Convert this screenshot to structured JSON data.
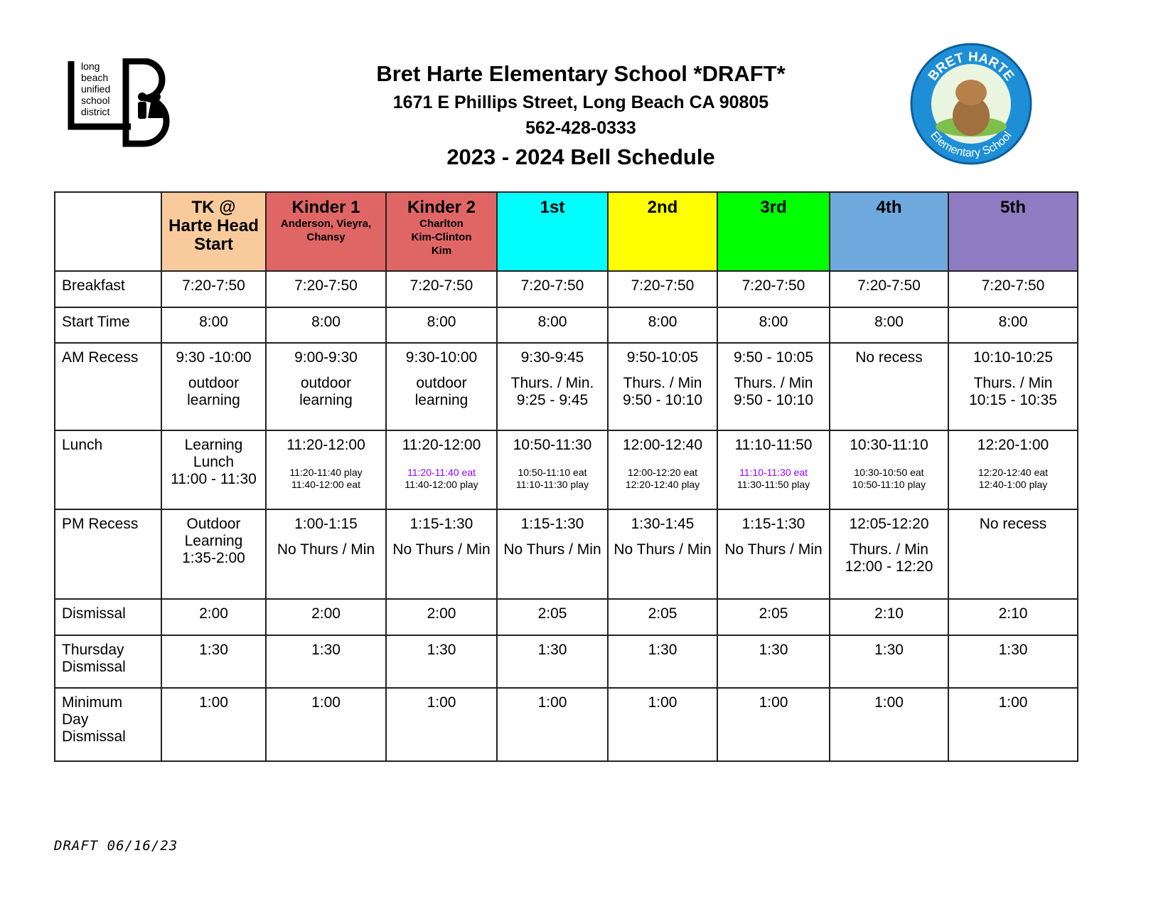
{
  "header": {
    "title": "Bret Harte Elementary School *DRAFT*",
    "address": "1671 E Phillips Street, Long Beach CA 90805",
    "phone": "562-428-0333",
    "schedule_title": "2023 - 2024 Bell Schedule",
    "district_logo_text": "long\nbeach\nunified\nschool\ndistrict",
    "school_logo_top": "BRET HARTE",
    "school_logo_bottom": "Elementary School"
  },
  "table": {
    "columns": [
      {
        "name": "TK @\nHarte Head\nStart",
        "color": "#f9cb9c"
      },
      {
        "name": "Kinder 1",
        "subtitle": "Anderson, Vieyra,\nChansy",
        "color": "#e06666"
      },
      {
        "name": "Kinder 2",
        "subtitle": "Charlton\nKim-Clinton\nKim",
        "color": "#e06666"
      },
      {
        "name": "1st",
        "color": "#00ffff"
      },
      {
        "name": "2nd",
        "color": "#ffff00"
      },
      {
        "name": "3rd",
        "color": "#00ff00"
      },
      {
        "name": "4th",
        "color": "#6fa8dc"
      },
      {
        "name": "5th",
        "color": "#8e7cc3"
      }
    ],
    "rows": [
      {
        "label": "Breakfast",
        "cells": [
          [
            "7:20-7:50"
          ],
          [
            "7:20-7:50"
          ],
          [
            "7:20-7:50"
          ],
          [
            "7:20-7:50"
          ],
          [
            "7:20-7:50"
          ],
          [
            "7:20-7:50"
          ],
          [
            "7:20-7:50"
          ],
          [
            "7:20-7:50"
          ]
        ]
      },
      {
        "label": "Start Time",
        "cells": [
          [
            "8:00"
          ],
          [
            "8:00"
          ],
          [
            "8:00"
          ],
          [
            "8:00"
          ],
          [
            "8:00"
          ],
          [
            "8:00"
          ],
          [
            "8:00"
          ],
          [
            "8:00"
          ]
        ]
      },
      {
        "label": "AM Recess",
        "cells": [
          [
            "9:30 -10:00",
            "outdoor\nlearning"
          ],
          [
            "9:00-9:30",
            "outdoor\nlearning"
          ],
          [
            "9:30-10:00",
            "outdoor\nlearning"
          ],
          [
            "9:30-9:45",
            "Thurs. / Min.\n9:25 - 9:45"
          ],
          [
            "9:50-10:05",
            "Thurs. / Min\n9:50 - 10:10"
          ],
          [
            "9:50 - 10:05",
            "Thurs. / Min\n9:50 - 10:10"
          ],
          [
            "No recess"
          ],
          [
            "10:10-10:25",
            "Thurs. / Min\n10:15 - 10:35"
          ]
        ]
      },
      {
        "label": "Lunch",
        "cells": [
          [
            "Learning\nLunch\n11:00 - 11:30"
          ],
          [
            "11:20-12:00",
            {
              "text": "11:20-11:40 play\n11:40-12:00 eat",
              "small": true
            }
          ],
          [
            "11:20-12:00",
            {
              "text": "11:20-11:40 eat",
              "small": true,
              "color": "#9900ff"
            },
            {
              "text": "11:40-12:00 play",
              "small": true
            }
          ],
          [
            "10:50-11:30",
            {
              "text": "10:50-11:10 eat\n11:10-11:30  play",
              "small": true
            }
          ],
          [
            "12:00-12:40",
            {
              "text": "12:00-12:20 eat\n12:20-12:40 play",
              "small": true
            }
          ],
          [
            "11:10-11:50",
            {
              "text": "11:10-11:30  eat",
              "small": true,
              "color": "#9900ff"
            },
            {
              "text": "11:30-11:50  play",
              "small": true
            }
          ],
          [
            "10:30-11:10",
            {
              "text": "10:30-10:50 eat\n10:50-11:10 play",
              "small": true
            }
          ],
          [
            "12:20-1:00",
            {
              "text": "12:20-12:40 eat\n12:40-1:00 play",
              "small": true
            }
          ]
        ]
      },
      {
        "label": "PM Recess",
        "cells": [
          [
            "Outdoor\nLearning\n1:35-2:00"
          ],
          [
            "1:00-1:15",
            "No Thurs / Min"
          ],
          [
            "1:15-1:30",
            "No Thurs / Min"
          ],
          [
            "1:15-1:30",
            "No Thurs / Min"
          ],
          [
            "1:30-1:45",
            "No Thurs / Min"
          ],
          [
            "1:15-1:30",
            "No Thurs / Min"
          ],
          [
            "12:05-12:20",
            "Thurs. / Min\n12:00 - 12:20"
          ],
          [
            "No recess"
          ]
        ]
      },
      {
        "label": "Dismissal",
        "cells": [
          [
            "2:00"
          ],
          [
            "2:00"
          ],
          [
            "2:00"
          ],
          [
            "2:05"
          ],
          [
            "2:05"
          ],
          [
            "2:05"
          ],
          [
            "2:10"
          ],
          [
            "2:10"
          ]
        ]
      },
      {
        "label": "Thursday\nDismissal",
        "cells": [
          [
            "1:30"
          ],
          [
            "1:30"
          ],
          [
            "1:30"
          ],
          [
            "1:30"
          ],
          [
            "1:30"
          ],
          [
            "1:30"
          ],
          [
            "1:30"
          ],
          [
            "1:30"
          ]
        ]
      },
      {
        "label": "Minimum\nDay\nDismissal",
        "cells": [
          [
            "1:00"
          ],
          [
            "1:00"
          ],
          [
            "1:00"
          ],
          [
            "1:00"
          ],
          [
            "1:00"
          ],
          [
            "1:00"
          ],
          [
            "1:00"
          ],
          [
            "1:00"
          ]
        ]
      }
    ]
  },
  "footer": "DRAFT 06/16/23"
}
